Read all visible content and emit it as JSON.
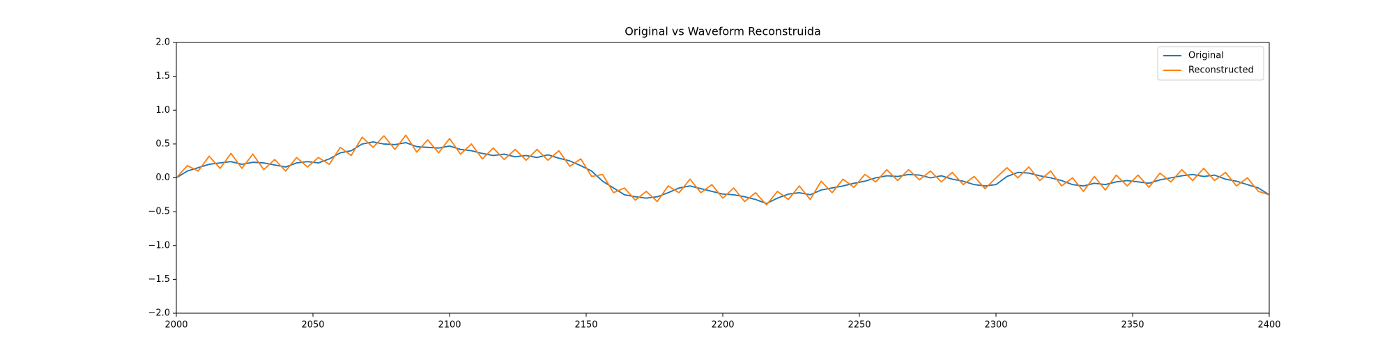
{
  "chart_data": {
    "type": "line",
    "title": "Original vs Waveform Reconstruida",
    "x": [
      2000,
      2004,
      2008,
      2012,
      2016,
      2020,
      2024,
      2028,
      2032,
      2036,
      2040,
      2044,
      2048,
      2052,
      2056,
      2060,
      2064,
      2068,
      2072,
      2076,
      2080,
      2084,
      2088,
      2092,
      2096,
      2100,
      2104,
      2108,
      2112,
      2116,
      2120,
      2124,
      2128,
      2132,
      2136,
      2140,
      2144,
      2148,
      2152,
      2156,
      2160,
      2164,
      2168,
      2172,
      2176,
      2180,
      2184,
      2188,
      2192,
      2196,
      2200,
      2204,
      2208,
      2212,
      2216,
      2220,
      2224,
      2228,
      2232,
      2236,
      2240,
      2244,
      2248,
      2252,
      2256,
      2260,
      2264,
      2268,
      2272,
      2276,
      2280,
      2284,
      2288,
      2292,
      2296,
      2300,
      2304,
      2308,
      2312,
      2316,
      2320,
      2324,
      2328,
      2332,
      2336,
      2340,
      2344,
      2348,
      2352,
      2356,
      2360,
      2364,
      2368,
      2372,
      2376,
      2380,
      2384,
      2388,
      2392,
      2396,
      2400
    ],
    "series": [
      {
        "name": "Original",
        "color": "#1f77b4",
        "values": [
          0.0,
          0.1,
          0.15,
          0.2,
          0.22,
          0.24,
          0.2,
          0.23,
          0.22,
          0.19,
          0.16,
          0.22,
          0.24,
          0.22,
          0.28,
          0.37,
          0.4,
          0.5,
          0.53,
          0.5,
          0.49,
          0.52,
          0.46,
          0.45,
          0.44,
          0.47,
          0.42,
          0.4,
          0.36,
          0.33,
          0.35,
          0.31,
          0.33,
          0.3,
          0.34,
          0.29,
          0.25,
          0.18,
          0.1,
          -0.05,
          -0.15,
          -0.25,
          -0.28,
          -0.3,
          -0.28,
          -0.22,
          -0.15,
          -0.12,
          -0.16,
          -0.2,
          -0.24,
          -0.25,
          -0.28,
          -0.32,
          -0.38,
          -0.3,
          -0.24,
          -0.22,
          -0.25,
          -0.18,
          -0.15,
          -0.12,
          -0.08,
          -0.05,
          0.0,
          0.03,
          0.02,
          0.05,
          0.04,
          0.0,
          0.03,
          -0.02,
          -0.05,
          -0.1,
          -0.12,
          -0.1,
          0.02,
          0.08,
          0.07,
          0.03,
          0.0,
          -0.04,
          -0.1,
          -0.12,
          -0.08,
          -0.1,
          -0.06,
          -0.04,
          -0.06,
          -0.08,
          -0.03,
          0.0,
          0.03,
          0.05,
          0.02,
          0.04,
          -0.02,
          -0.05,
          -0.1,
          -0.15,
          -0.25
        ]
      },
      {
        "name": "Reconstructed",
        "color": "#ff7f0e",
        "values": [
          0.0,
          0.18,
          0.1,
          0.32,
          0.14,
          0.36,
          0.14,
          0.35,
          0.12,
          0.27,
          0.1,
          0.3,
          0.16,
          0.3,
          0.2,
          0.45,
          0.33,
          0.6,
          0.45,
          0.62,
          0.42,
          0.63,
          0.38,
          0.56,
          0.37,
          0.58,
          0.35,
          0.5,
          0.28,
          0.44,
          0.27,
          0.42,
          0.26,
          0.42,
          0.26,
          0.4,
          0.17,
          0.28,
          0.02,
          0.05,
          -0.22,
          -0.15,
          -0.33,
          -0.2,
          -0.35,
          -0.12,
          -0.22,
          -0.02,
          -0.22,
          -0.1,
          -0.3,
          -0.15,
          -0.35,
          -0.22,
          -0.4,
          -0.2,
          -0.32,
          -0.12,
          -0.32,
          -0.05,
          -0.22,
          -0.02,
          -0.14,
          0.05,
          -0.06,
          0.12,
          -0.04,
          0.12,
          -0.03,
          0.1,
          -0.06,
          0.08,
          -0.1,
          0.02,
          -0.16,
          0.0,
          0.15,
          0.0,
          0.16,
          -0.04,
          0.1,
          -0.12,
          0.0,
          -0.2,
          0.02,
          -0.18,
          0.04,
          -0.12,
          0.04,
          -0.14,
          0.07,
          -0.06,
          0.12,
          -0.04,
          0.14,
          -0.04,
          0.08,
          -0.12,
          0.0,
          -0.2,
          -0.25
        ]
      }
    ],
    "xlim": [
      2000,
      2400
    ],
    "xticks": [
      2000,
      2050,
      2100,
      2150,
      2200,
      2250,
      2300,
      2350,
      2400
    ],
    "ylim": [
      -2.0,
      2.0
    ],
    "yticks": [
      {
        "value": -2.0,
        "label": "−2.0"
      },
      {
        "value": -1.5,
        "label": "−1.5"
      },
      {
        "value": -1.0,
        "label": "−1.0"
      },
      {
        "value": -0.5,
        "label": "−0.5"
      },
      {
        "value": 0.0,
        "label": "0.0"
      },
      {
        "value": 0.5,
        "label": "0.5"
      },
      {
        "value": 1.0,
        "label": "1.0"
      },
      {
        "value": 1.5,
        "label": "1.5"
      },
      {
        "value": 2.0,
        "label": "2.0"
      }
    ],
    "grid": false,
    "legend": "upper right"
  }
}
